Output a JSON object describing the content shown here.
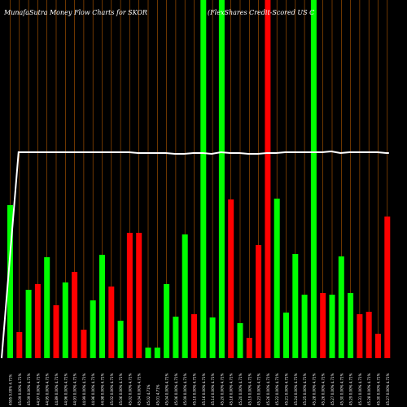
{
  "header": {
    "title_left": "MunafaSutra  Money Flow  Charts for SKOR",
    "title_right": "(FlexShares Credit-Scored US C"
  },
  "colors": {
    "background": "#000000",
    "up": "#00ff00",
    "down": "#ff0000",
    "grid": "#b35900",
    "line": "#ffffff"
  },
  "chart_data": {
    "type": "bar",
    "ylim": [
      0,
      440
    ],
    "values": [
      188,
      32,
      84,
      91,
      124,
      65,
      93,
      106,
      35,
      71,
      127,
      88,
      46,
      154,
      154,
      13,
      13,
      91,
      51,
      152,
      54,
      440,
      50,
      440,
      195,
      43,
      25,
      139,
      440,
      196,
      56,
      128,
      78,
      440,
      80,
      78,
      125,
      80,
      54,
      57,
      30,
      174
    ],
    "directions": [
      "up",
      "down",
      "up",
      "down",
      "up",
      "down",
      "up",
      "down",
      "down",
      "up",
      "up",
      "down",
      "up",
      "down",
      "down",
      "up",
      "up",
      "up",
      "up",
      "up",
      "down",
      "up",
      "up",
      "up",
      "down",
      "up",
      "down",
      "down",
      "down",
      "up",
      "up",
      "up",
      "up",
      "up",
      "down",
      "up",
      "up",
      "up",
      "down",
      "down",
      "down",
      "down"
    ],
    "line_values": [
      0,
      253,
      253,
      253,
      253,
      253,
      253,
      253,
      253,
      253,
      253,
      253,
      253,
      253,
      252,
      252,
      252,
      252,
      251,
      251,
      252,
      252,
      251,
      253,
      252,
      252,
      251,
      251,
      252,
      252,
      253,
      253,
      253,
      253,
      253,
      254,
      252,
      253,
      253,
      253,
      253,
      252
    ],
    "x_labels": [
      "4595 0.00% 4.71%",
      "45.09 0.00% 4.71%",
      "45.09 0.00% 4.71%",
      "44.97 0.00% 4.71%",
      "44.95 0.00% 4.71%",
      "44.89 0.00% 4.71%",
      "44.96 0.00% 4.71%",
      "44.93 0.00% 4.71%",
      "44.99 0.00% 4.71%",
      "44.96 0.00% 4.71%",
      "44.98 0.00% 4.71%",
      "45.02 0.00% 4.71%",
      "45.06 0.00% 4.71%",
      "45.02 0.00% 4.71%",
      "45.04 0.00% 4.71%",
      "45.02 4.71%",
      "45.01 4.71%",
      "45.04 0.00% 4.71%",
      "45.06 0.00% 4.71%",
      "45.09 0.00% 4.71%",
      "45.10 0.00% 4.71%",
      "45.16 0.00% 4.71%",
      "45.14 0.00% 4.71%",
      "45.20 0.00% 4.71%",
      "45.18 0.00% 4.71%",
      "45.20 0.00% 4.71%",
      "45.19 0.00% 4.71%",
      "45.23 0.00% 4.71%",
      "45.26 0.00% 4.71%",
      "45.22 0.00% 4.71%",
      "45.21 0.00% 4.71%",
      "45.24 0.00% 4.71%",
      "45.25 0.00% 4.71%",
      "45.28 0.00% 4.71%",
      "45.26 0.00% 4.71%",
      "45.27 0.00% 4.71%",
      "45.30 0.00% 4.71%",
      "45.29 0.00% 4.71%",
      "45.31 0.00% 4.71%",
      "45.28 0.00% 4.71%",
      "45.30 0.00% 4.71%",
      "45.27 0.00% 4.71%"
    ]
  }
}
